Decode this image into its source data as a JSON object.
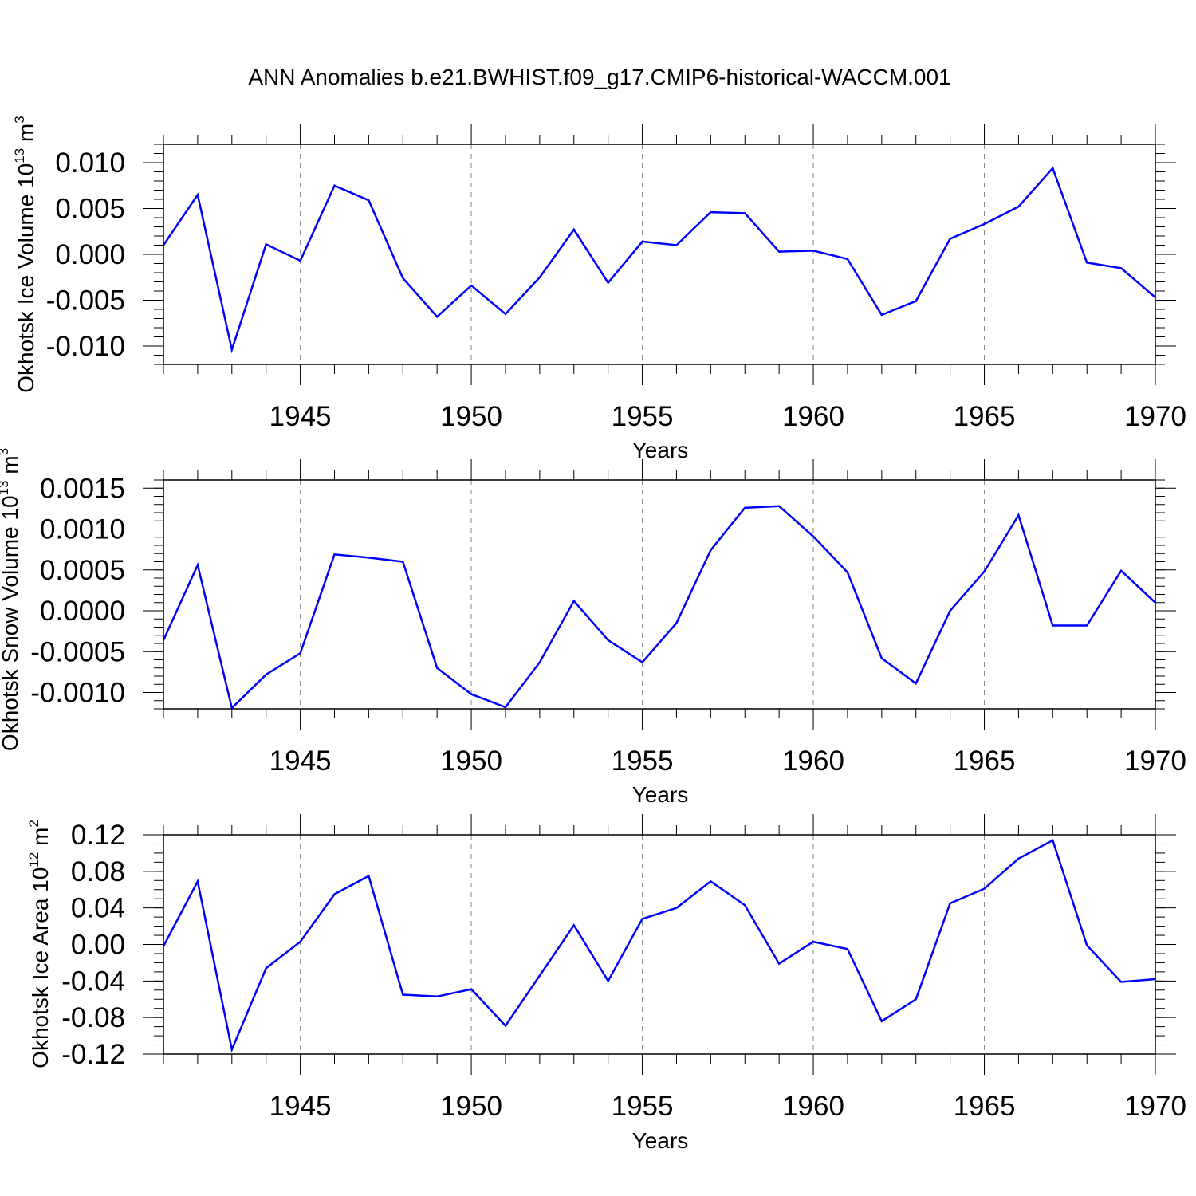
{
  "title": "ANN Anomalies b.e21.BWHIST.f09_g17.CMIP6-historical-WACCM.001",
  "chart_data": [
    {
      "type": "line",
      "title": "ANN Anomalies b.e21.BWHIST.f09_g17.CMIP6-historical-WACCM.001",
      "xlabel": "Years",
      "ylabel": {
        "text": "Okhotsk Ice Volume 10",
        "exp": "13",
        "unit": "m",
        "unit_exp": "3"
      },
      "xlim": [
        1941,
        1970
      ],
      "ylim": [
        -0.012,
        0.012
      ],
      "xticks": [
        "1945",
        "1950",
        "1955",
        "1960",
        "1965",
        "1970"
      ],
      "yticks": [
        "-0.010",
        "-0.005",
        "0.000",
        "0.005",
        "0.010"
      ],
      "grid": "vertical dashed at major x ticks",
      "color": "#0000ff",
      "x": [
        1941,
        1942,
        1943,
        1944,
        1945,
        1946,
        1947,
        1948,
        1949,
        1950,
        1951,
        1952,
        1953,
        1954,
        1955,
        1956,
        1957,
        1958,
        1959,
        1960,
        1961,
        1962,
        1963,
        1964,
        1965,
        1966,
        1967,
        1968,
        1969,
        1970
      ],
      "y": [
        0.001,
        0.0065,
        -0.0104,
        0.0011,
        -0.0007,
        0.0075,
        0.0059,
        -0.0026,
        -0.0068,
        -0.0034,
        -0.0065,
        -0.0025,
        0.0027,
        -0.0031,
        0.0014,
        0.001,
        0.0046,
        0.0045,
        0.0003,
        0.0004,
        -0.0005,
        -0.0066,
        -0.0051,
        0.0017,
        0.0033,
        0.0052,
        0.0094,
        -0.0009,
        -0.0015,
        -0.0047
      ]
    },
    {
      "type": "line",
      "xlabel": "Years",
      "ylabel": {
        "text": "Okhotsk Snow Volume 10",
        "exp": "13",
        "unit": "m",
        "unit_exp": "3"
      },
      "xlim": [
        1941,
        1970
      ],
      "ylim": [
        -0.0012,
        0.0016
      ],
      "xticks": [
        "1945",
        "1950",
        "1955",
        "1960",
        "1965",
        "1970"
      ],
      "yticks": [
        "-0.0010",
        "-0.0005",
        "0.0000",
        "0.0005",
        "0.0010",
        "0.0015"
      ],
      "grid": "vertical dashed at major x ticks",
      "color": "#0000ff",
      "x": [
        1941,
        1942,
        1943,
        1944,
        1945,
        1946,
        1947,
        1948,
        1949,
        1950,
        1951,
        1952,
        1953,
        1954,
        1955,
        1956,
        1957,
        1958,
        1959,
        1960,
        1961,
        1962,
        1963,
        1964,
        1965,
        1966,
        1967,
        1968,
        1969,
        1970
      ],
      "y": [
        -0.00036,
        0.00056,
        -0.00119,
        -0.00078,
        -0.00052,
        0.00069,
        0.00065,
        0.0006,
        -0.0007,
        -0.00102,
        -0.00118,
        -0.00063,
        0.00012,
        -0.00036,
        -0.00063,
        -0.00015,
        0.00074,
        0.00126,
        0.00128,
        0.00091,
        0.00047,
        -0.00058,
        -0.00089,
        0.0,
        0.00048,
        0.00117,
        -0.00018,
        -0.00018,
        0.00049,
        0.0001
      ]
    },
    {
      "type": "line",
      "xlabel": "Years",
      "ylabel": {
        "text": "Okhotsk Ice Area 10",
        "exp": "12",
        "unit": "m",
        "unit_exp": "2"
      },
      "xlim": [
        1941,
        1970
      ],
      "ylim": [
        -0.12,
        0.12
      ],
      "xticks": [
        "1945",
        "1950",
        "1955",
        "1960",
        "1965",
        "1970"
      ],
      "yticks": [
        "-0.12",
        "-0.08",
        "-0.04",
        "0.00",
        "0.04",
        "0.08",
        "0.12"
      ],
      "grid": "vertical dashed at major x ticks",
      "color": "#0000ff",
      "x": [
        1941,
        1942,
        1943,
        1944,
        1945,
        1946,
        1947,
        1948,
        1949,
        1950,
        1951,
        1952,
        1953,
        1954,
        1955,
        1956,
        1957,
        1958,
        1959,
        1960,
        1961,
        1962,
        1963,
        1964,
        1965,
        1966,
        1967,
        1968,
        1969,
        1970
      ],
      "y": [
        -0.002,
        0.069,
        -0.115,
        -0.026,
        0.003,
        0.055,
        0.075,
        -0.055,
        -0.057,
        -0.049,
        -0.089,
        -0.034,
        0.021,
        -0.04,
        0.028,
        0.04,
        0.069,
        0.043,
        -0.021,
        0.003,
        -0.005,
        -0.084,
        -0.06,
        0.045,
        0.061,
        0.094,
        0.114,
        -0.001,
        -0.041,
        -0.038
      ]
    }
  ]
}
